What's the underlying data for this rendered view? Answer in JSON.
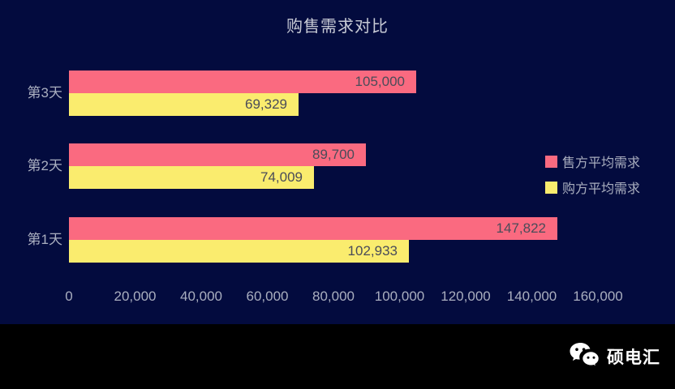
{
  "chart_data": {
    "type": "bar",
    "orientation": "horizontal",
    "title": "购售需求对比",
    "categories": [
      "第1天",
      "第2天",
      "第3天"
    ],
    "display_order_top_to_bottom": [
      "第3天",
      "第2天",
      "第1天"
    ],
    "series": [
      {
        "name": "售方平均需求",
        "color": "#fa6a80",
        "values": [
          147822,
          89700,
          105000
        ]
      },
      {
        "name": "购方平均需求",
        "color": "#faec6e",
        "values": [
          102933,
          74009,
          69329
        ]
      }
    ],
    "value_labels": {
      "售方平均需求": [
        "147,822",
        "89,700",
        "105,000"
      ],
      "购方平均需求": [
        "102,933",
        "74,009",
        "69,329"
      ]
    },
    "x_ticks": [
      "0",
      "20,000",
      "40,000",
      "60,000",
      "80,000",
      "100,000",
      "120,000",
      "140,000",
      "160,000"
    ],
    "xlim": [
      0,
      160000
    ],
    "grid": false,
    "legend_position": "right"
  },
  "footer": {
    "brand": "硕电汇",
    "icon": "wechat-icon"
  },
  "colors": {
    "background": "#030b3e",
    "footer_background": "#000000",
    "title_text": "#c7cad5",
    "axis_text": "#a9aebf",
    "value_text": "#4a4c59",
    "brand_text": "#ffffff"
  }
}
